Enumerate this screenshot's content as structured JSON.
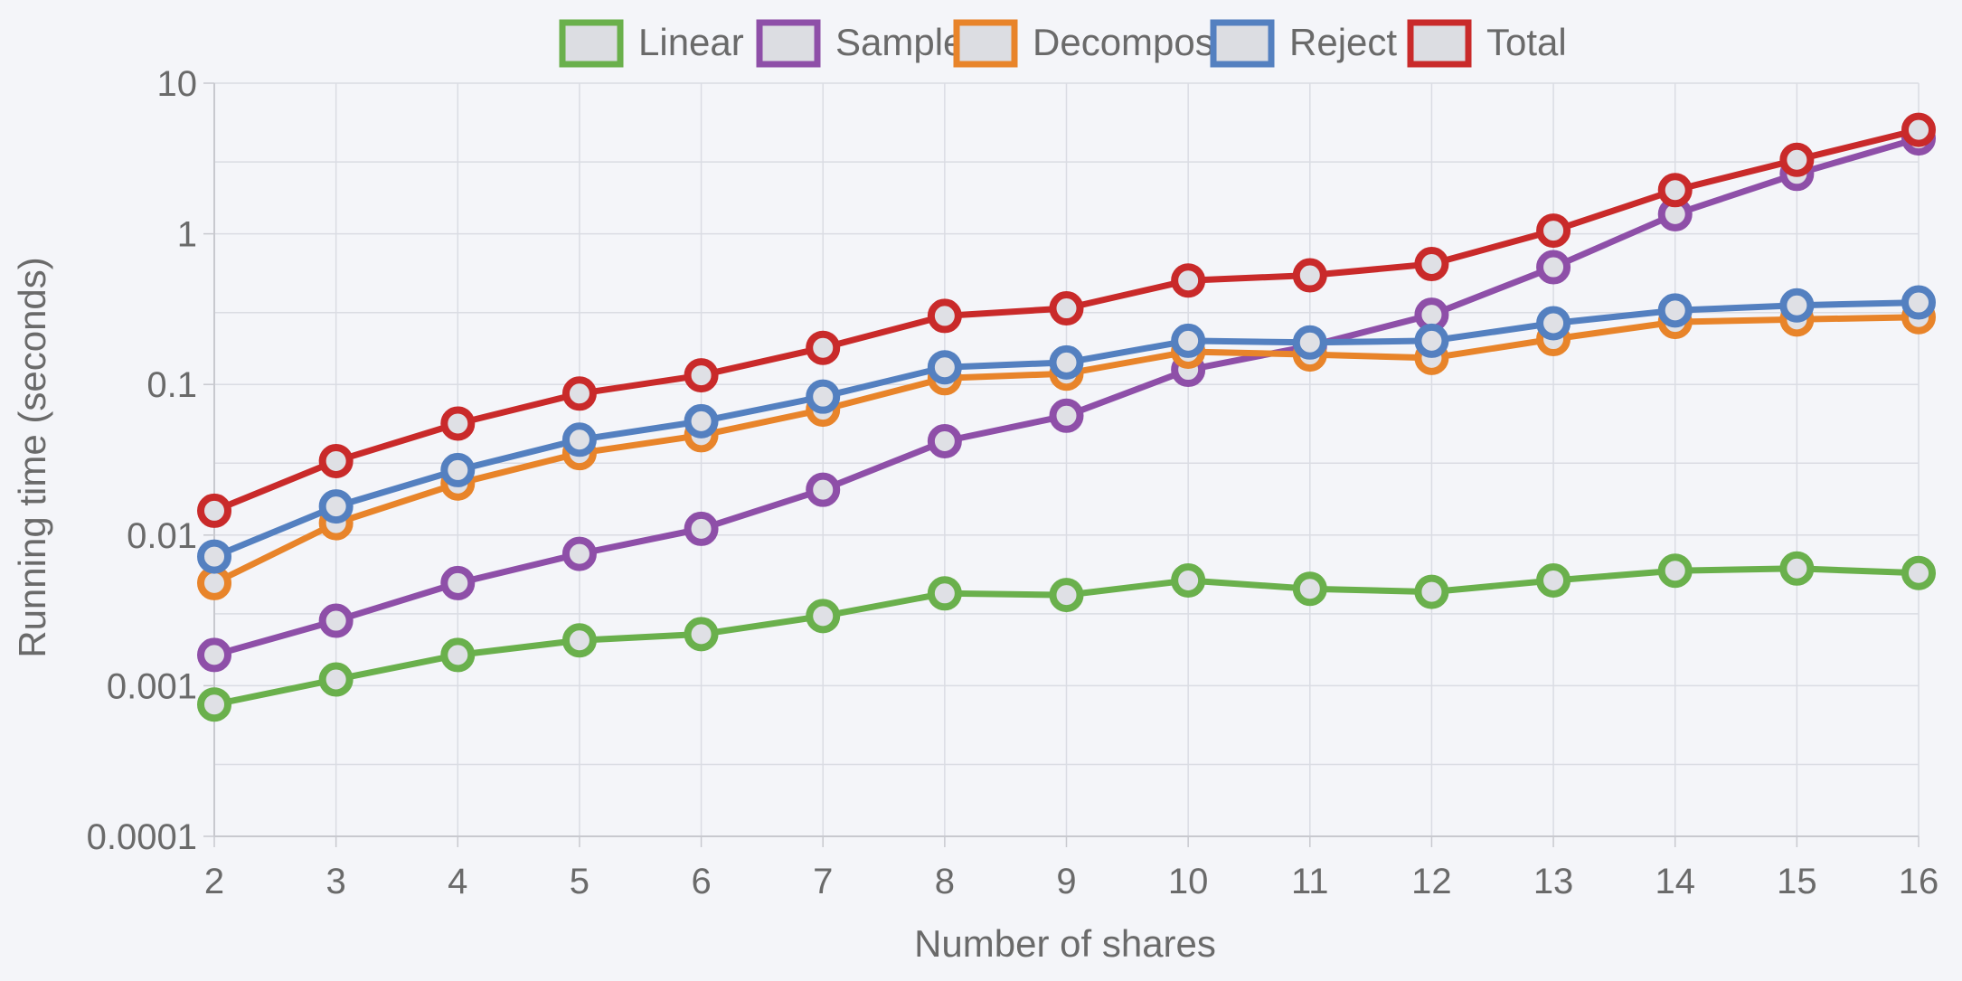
{
  "chart_data": {
    "type": "line",
    "title": "",
    "xlabel": "Number of shares",
    "ylabel": "Running time (seconds)",
    "y_scale": "log",
    "ylim": [
      0.0001,
      10
    ],
    "xlim": [
      2,
      16
    ],
    "x": [
      2,
      3,
      4,
      5,
      6,
      7,
      8,
      9,
      10,
      11,
      12,
      13,
      14,
      15,
      16
    ],
    "x_ticks": [
      "2",
      "3",
      "4",
      "5",
      "6",
      "7",
      "8",
      "9",
      "10",
      "11",
      "12",
      "13",
      "14",
      "15",
      "16"
    ],
    "y_ticks": [
      {
        "value": 10,
        "label": "10"
      },
      {
        "value": 1,
        "label": "1"
      },
      {
        "value": 0.1,
        "label": "0.1"
      },
      {
        "value": 0.01,
        "label": "0.01"
      },
      {
        "value": 0.001,
        "label": "0.001"
      },
      {
        "value": 0.0001,
        "label": "0.0001"
      }
    ],
    "grid": true,
    "legend_position": "top-center",
    "series": [
      {
        "name": "Linear",
        "color": "#6ab04c",
        "values": [
          0.00075,
          0.0011,
          0.0016,
          0.002,
          0.0022,
          0.0029,
          0.0041,
          0.004,
          0.005,
          0.0044,
          0.0042,
          0.005,
          0.0058,
          0.006,
          0.0056
        ]
      },
      {
        "name": "Sample",
        "color": "#8e4fa8",
        "values": [
          0.0016,
          0.0027,
          0.0048,
          0.0075,
          0.011,
          0.02,
          0.042,
          0.062,
          0.125,
          0.18,
          0.29,
          0.6,
          1.35,
          2.5,
          4.3
        ]
      },
      {
        "name": "Decompose",
        "color": "#e8842a",
        "values": [
          0.0048,
          0.012,
          0.022,
          0.035,
          0.046,
          0.068,
          0.11,
          0.118,
          0.165,
          0.158,
          0.15,
          0.2,
          0.26,
          0.27,
          0.28
        ]
      },
      {
        "name": "Reject",
        "color": "#5480c0",
        "values": [
          0.0072,
          0.0155,
          0.027,
          0.043,
          0.057,
          0.083,
          0.13,
          0.14,
          0.195,
          0.19,
          0.195,
          0.255,
          0.31,
          0.335,
          0.35
        ]
      },
      {
        "name": "Total",
        "color": "#c92a2a",
        "values": [
          0.0145,
          0.031,
          0.055,
          0.087,
          0.115,
          0.175,
          0.285,
          0.32,
          0.49,
          0.53,
          0.63,
          1.05,
          1.95,
          3.1,
          4.9
        ]
      }
    ]
  }
}
